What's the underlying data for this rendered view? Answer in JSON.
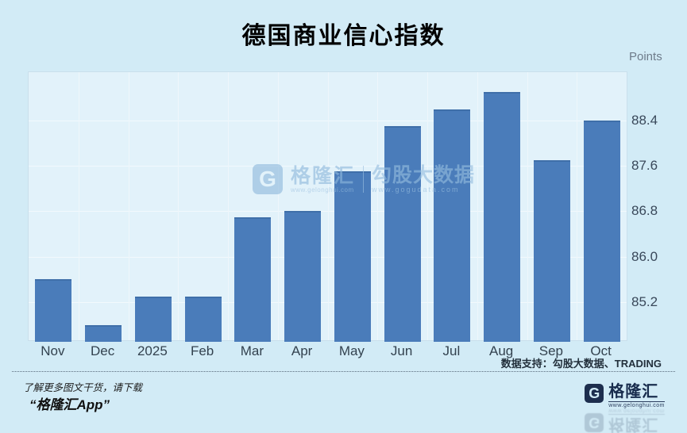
{
  "title": "德国商业信心指数",
  "y_axis": {
    "unit_label": "Points"
  },
  "chart_data": {
    "type": "bar",
    "title": "德国商业信心指数",
    "categories": [
      "Nov",
      "Dec",
      "2025",
      "Feb",
      "Mar",
      "Apr",
      "May",
      "Jun",
      "Jul",
      "Aug",
      "Sep",
      "Oct"
    ],
    "values": [
      85.6,
      84.8,
      85.3,
      85.3,
      86.7,
      86.8,
      87.5,
      88.3,
      88.6,
      88.9,
      87.7,
      88.4
    ],
    "xlabel": "",
    "ylabel": "Points",
    "yticks": [
      85.2,
      86.0,
      86.8,
      87.6,
      88.4
    ],
    "ylim": [
      84.5,
      89.25
    ],
    "grid": true,
    "legend": "none",
    "y_axis_position": "right",
    "bar_color": "#4a7cba"
  },
  "source_note": "数据支持：勾股大数据、TRADING",
  "watermark": {
    "brand_initial": "G",
    "brand": "格隆汇",
    "brand_url": "www.gelonghui.com",
    "partner": "勾股大数据",
    "partner_url": "www.gogudata.com"
  },
  "footer": {
    "line1": "了解更多图文干货，请下载",
    "line2": "“格隆汇App”",
    "logo_initial": "G",
    "logo_name": "格隆汇",
    "logo_url": "www.gelonghui.com"
  },
  "colors": {
    "page_background": "#d2ebf6",
    "plot_background": "#e2f2fa",
    "bar": "#4a7cba",
    "logo_navy": "#1d2e4e"
  }
}
